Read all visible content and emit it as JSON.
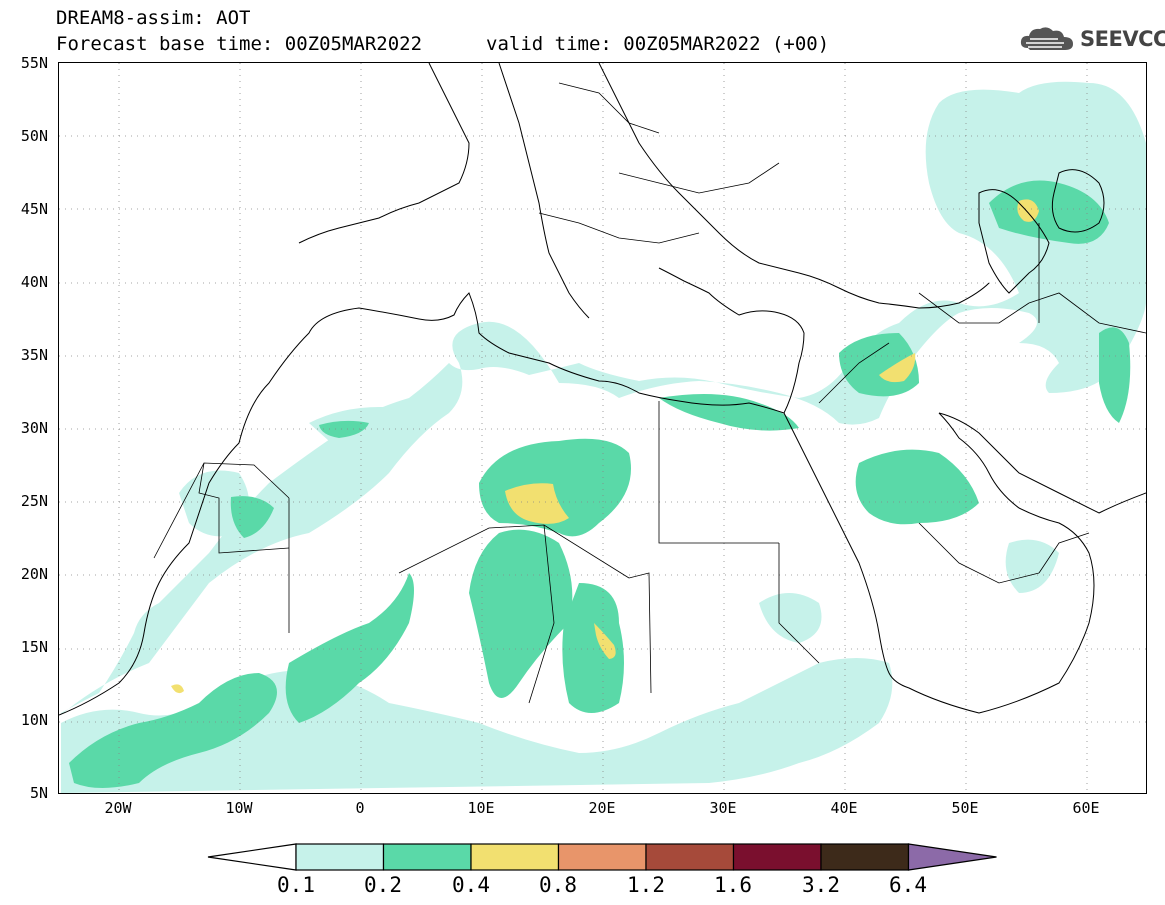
{
  "header": {
    "line1": "DREAM8-assim: AOT",
    "line2": "Forecast base time: 00Z05MAR2022",
    "line3": "valid time: 00Z05MAR2022 (+00)"
  },
  "logo": {
    "text": "SEEVCCC",
    "icon": "cloud-icon"
  },
  "map": {
    "lon_range": [
      -25,
      65
    ],
    "lat_range": [
      5,
      55
    ],
    "grid": "dotted",
    "lat_labels": [
      "55N",
      "50N",
      "45N",
      "40N",
      "35N",
      "30N",
      "25N",
      "20N",
      "15N",
      "10N",
      "5N"
    ],
    "lon_labels": [
      "20W",
      "10W",
      "0",
      "10E",
      "20E",
      "30E",
      "40E",
      "50E",
      "60E"
    ]
  },
  "colorbar": {
    "colors": [
      "#ffffff",
      "#c6f2ea",
      "#5ad9a8",
      "#f2e070",
      "#e8956a",
      "#a64a3a",
      "#7a0f2e",
      "#3d2a1a",
      "#8c6aa8"
    ],
    "labels": [
      "0.1",
      "0.2",
      "0.4",
      "0.8",
      "1.2",
      "1.6",
      "3.2",
      "6.4"
    ]
  }
}
